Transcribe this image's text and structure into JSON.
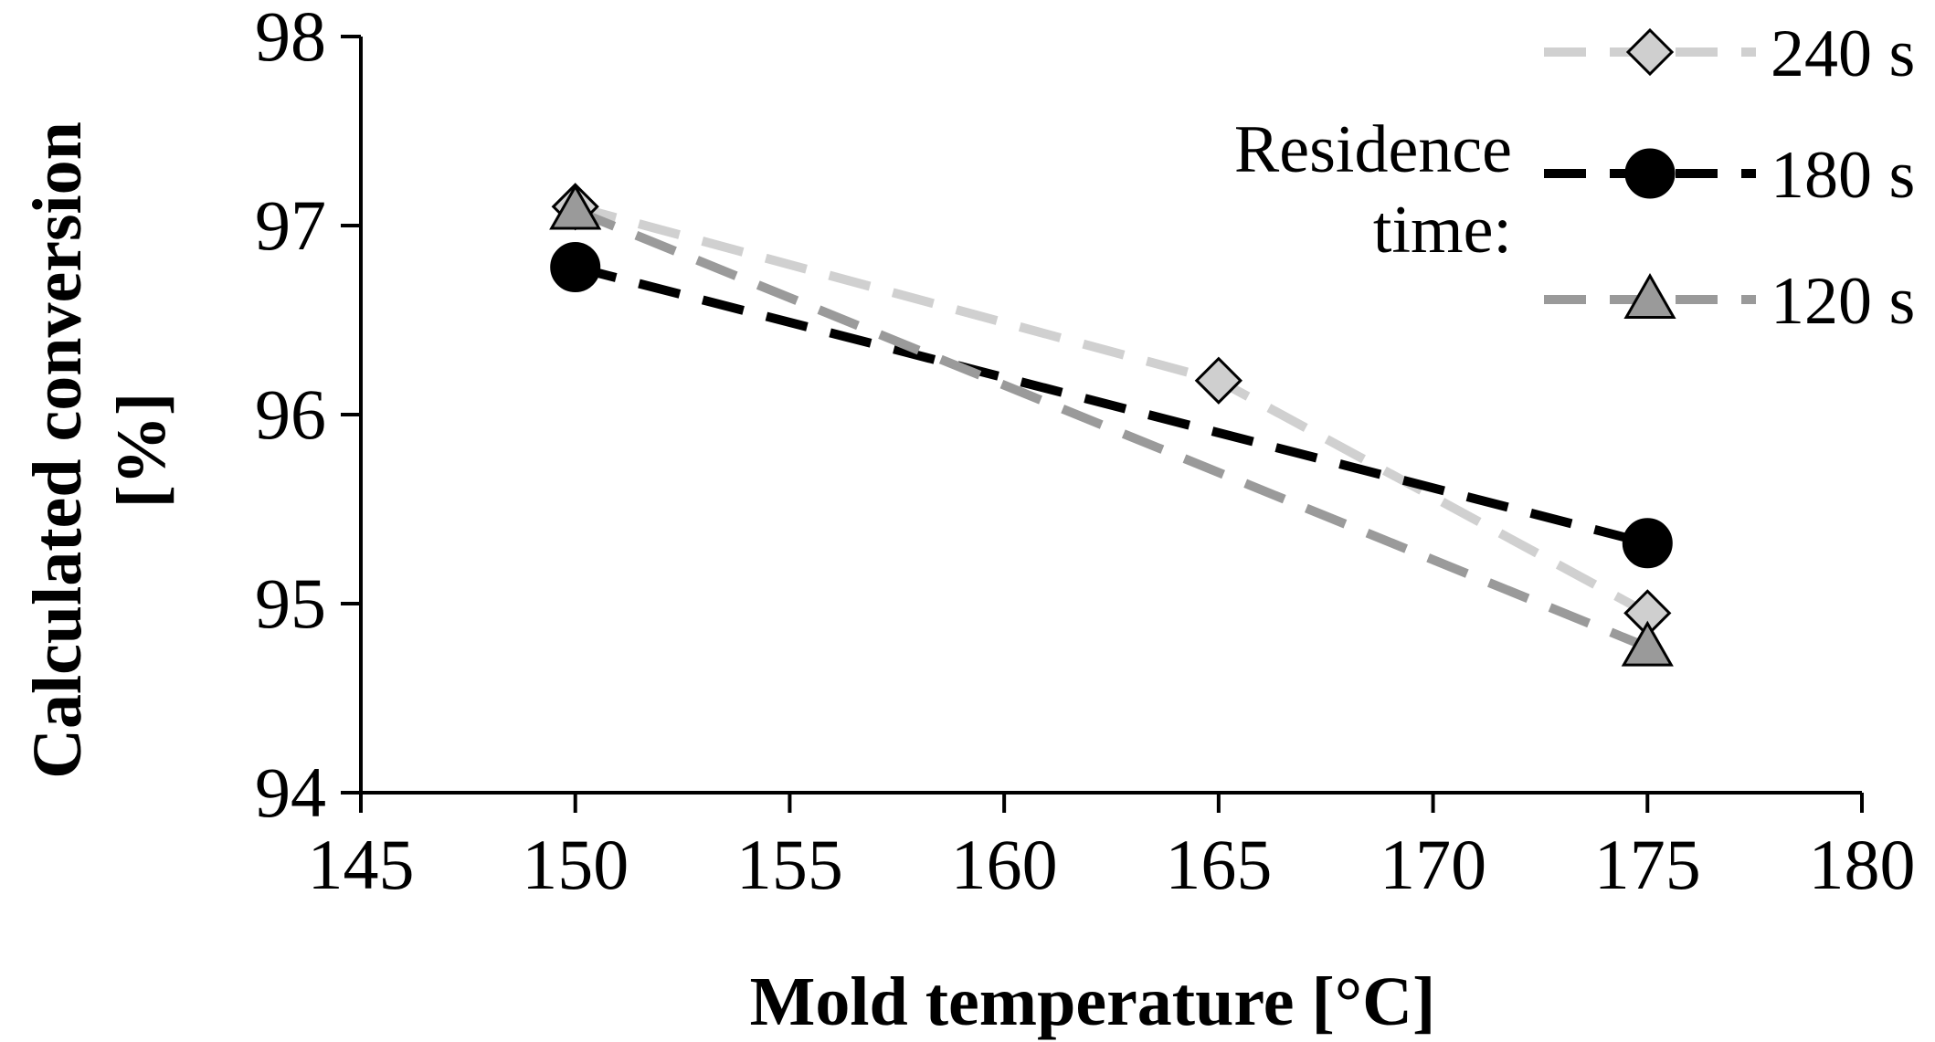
{
  "chart_data": {
    "type": "line",
    "title": "",
    "xlabel": "Mold temperature [°C]",
    "ylabel_lines": [
      "Calculated conversion",
      "[%]"
    ],
    "xlim": [
      145,
      180
    ],
    "ylim": [
      94,
      98
    ],
    "x_ticks": [
      145,
      150,
      155,
      160,
      165,
      170,
      175,
      180
    ],
    "y_ticks": [
      94,
      95,
      96,
      97,
      98
    ],
    "grid": false,
    "legend": {
      "placement": "top-right",
      "title_lines": [
        "Residence",
        "time:"
      ]
    },
    "series": [
      {
        "name": "240 s",
        "marker": "diamond",
        "line_color": "#d0d0d0",
        "marker_fill": "#cfcfcf",
        "x": [
          150,
          165,
          175
        ],
        "y": [
          97.1,
          96.18,
          94.95
        ]
      },
      {
        "name": "180 s",
        "marker": "circle",
        "line_color": "#000000",
        "marker_fill": "#000000",
        "x": [
          150,
          175
        ],
        "y": [
          96.78,
          95.32
        ]
      },
      {
        "name": "120 s",
        "marker": "triangle",
        "line_color": "#9a9a9a",
        "marker_fill": "#9a9a9a",
        "x": [
          150,
          175
        ],
        "y": [
          97.08,
          94.77
        ]
      }
    ]
  }
}
